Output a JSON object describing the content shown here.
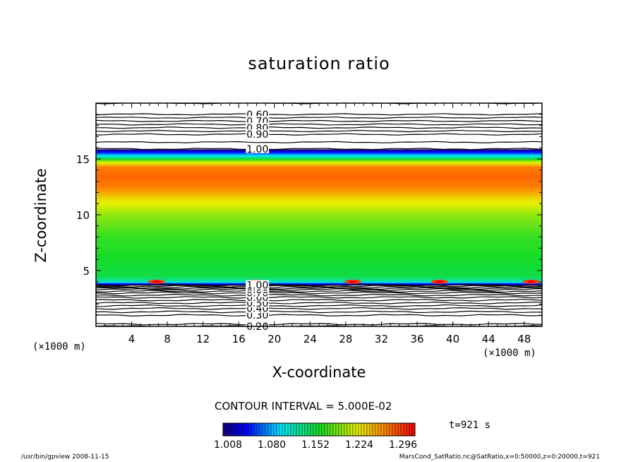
{
  "chart_data": {
    "type": "heatmap",
    "title": "saturation ratio",
    "xlabel": "X-coordinate",
    "ylabel": "Z-coordinate",
    "x_unit": "(×1000 m)",
    "y_unit": "(×1000 m)",
    "xlim": [
      0,
      50
    ],
    "ylim": [
      0,
      20
    ],
    "x_ticks": [
      4,
      8,
      12,
      16,
      20,
      24,
      28,
      32,
      36,
      40,
      44,
      48
    ],
    "y_ticks": [
      5,
      10,
      15
    ],
    "colorbar": {
      "min": 1.0,
      "max": 1.34,
      "tick_labels": [
        "1.008",
        "1.080",
        "1.152",
        "1.224",
        "1.296"
      ]
    },
    "contour_labels_upper": [
      "0.60",
      "0.70",
      "0.80",
      "0.90",
      "1.00"
    ],
    "contour_labels_lower": [
      "0.20",
      "0.30",
      "0.40",
      "0.50",
      "0.60",
      "0.70",
      "0.80",
      "0.90",
      "1.00"
    ],
    "profile": [
      {
        "z": 0.0,
        "value": 0.2
      },
      {
        "z": 0.2,
        "value": 0.25
      },
      {
        "z": 1.0,
        "value": 0.3
      },
      {
        "z": 1.6,
        "value": 0.4
      },
      {
        "z": 2.1,
        "value": 0.5
      },
      {
        "z": 2.6,
        "value": 0.6
      },
      {
        "z": 3.0,
        "value": 0.7
      },
      {
        "z": 3.3,
        "value": 0.8
      },
      {
        "z": 3.5,
        "value": 0.9
      },
      {
        "z": 3.7,
        "value": 1.0
      },
      {
        "z": 3.8,
        "value": 1.02
      },
      {
        "z": 4.0,
        "value": 1.12
      },
      {
        "z": 4.5,
        "value": 1.16
      },
      {
        "z": 6.0,
        "value": 1.17
      },
      {
        "z": 8.0,
        "value": 1.18
      },
      {
        "z": 10.0,
        "value": 1.21
      },
      {
        "z": 11.5,
        "value": 1.25
      },
      {
        "z": 12.5,
        "value": 1.29
      },
      {
        "z": 13.5,
        "value": 1.3
      },
      {
        "z": 14.3,
        "value": 1.29
      },
      {
        "z": 14.8,
        "value": 1.22
      },
      {
        "z": 15.1,
        "value": 1.15
      },
      {
        "z": 15.4,
        "value": 1.09
      },
      {
        "z": 15.7,
        "value": 1.03
      },
      {
        "z": 15.9,
        "value": 1.0
      },
      {
        "z": 16.5,
        "value": 0.95
      },
      {
        "z": 17.2,
        "value": 0.9
      },
      {
        "z": 17.8,
        "value": 0.8
      },
      {
        "z": 18.4,
        "value": 0.7
      },
      {
        "z": 19.0,
        "value": 0.6
      },
      {
        "z": 20.0,
        "value": 0.55
      }
    ],
    "hotspots_x": [
      6.8,
      18.0,
      28.8,
      38.5,
      48.8
    ],
    "hotspots_z": 4.0
  },
  "contour_interval": "CONTOUR INTERVAL = 5.000E-02",
  "time_label": "t=921 s",
  "footer_left": "/usr/bin/gpview   2008-11-15",
  "footer_right": "MarsCond_SatRatio.nc@SatRatio,x=0:50000,z=0:20000,t=921"
}
